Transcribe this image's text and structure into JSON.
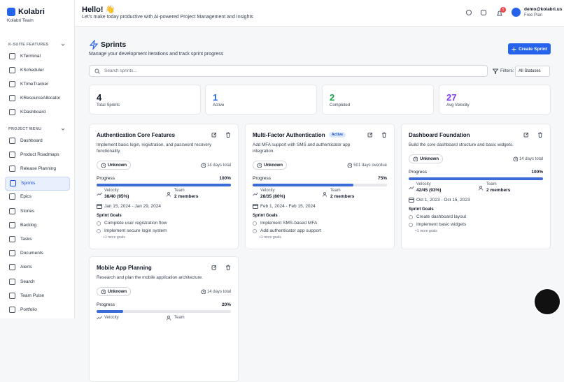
{
  "sidebar": {
    "brand": "Kolabri",
    "team": "Kolabri Team",
    "sections": [
      {
        "title": "K-SUITE FEATURES",
        "items": [
          "KTerminal",
          "KScheduler",
          "KTimeTracker",
          "KResourceAllocator",
          "KDashboard"
        ]
      },
      {
        "title": "PROJECT MENU",
        "items": [
          "Dashboard",
          "Product Roadmaps",
          "Release Planning",
          "Sprints",
          "Epics",
          "Stories",
          "Backlog",
          "Tasks",
          "Documents",
          "Alerts",
          "Search",
          "Team Pulse",
          "Portfolio"
        ]
      }
    ],
    "active_item": "Sprints"
  },
  "header": {
    "greeting": "Hello! 👋",
    "subtitle": "Let's make today productive with AI-powered Project Management and Insights",
    "notifications": "5",
    "user_email": "demo@kolabri.us",
    "plan": "Free Plan"
  },
  "page": {
    "title": "Sprints",
    "subtitle": "Manage your development iterations and track sprint progress",
    "create_button": "Create Sprint",
    "search_placeholder": "Search sprints...",
    "filter_label": "Filters:",
    "filter_value": "All Statuses"
  },
  "stats": [
    {
      "value": 4,
      "label": "Total Sprints",
      "color": "#111827"
    },
    {
      "value": 1,
      "label": "Active",
      "color": "#2563eb"
    },
    {
      "value": 2,
      "label": "Completed",
      "color": "#16a34a"
    },
    {
      "value": 27,
      "label": "Avg Velocity",
      "color": "#7c3aed"
    }
  ],
  "labels": {
    "progress": "Progress",
    "velocity": "Velocity",
    "team": "Team",
    "goals": "Sprint Goals"
  },
  "sprints": [
    {
      "name": "Authentication Core Features",
      "description": "Implement basic login, registration, and password recovery functionality.",
      "status": "Unknown",
      "timing": "14 days total",
      "progress": {
        "value": 100,
        "label": "100%"
      },
      "velocity": "38/40 (95%)",
      "team": "2 members",
      "dates": "Jan 15, 2024 - Jan 29, 2024",
      "goals": [
        "Complete user registration flow",
        "Implement secure login system"
      ],
      "more": "+1 more goals"
    },
    {
      "name": "Multi-Factor Authentication",
      "badge": "Active",
      "description": "Add MFA support with SMS and authenticator app integration.",
      "status": "Unknown",
      "timing": "501 days overdue",
      "progress": {
        "value": 75,
        "label": "75%"
      },
      "velocity": "28/35 (80%)",
      "team": "2 members",
      "dates": "Feb 1, 2024 - Feb 15, 2024",
      "goals": [
        "Implement SMS-based MFA",
        "Add authenticator app support"
      ],
      "more": "+1 more goals"
    },
    {
      "name": "Dashboard Foundation",
      "description": "Build the core dashboard structure and basic widgets.",
      "status": "Unknown",
      "timing": "14 days total",
      "progress": {
        "value": 100,
        "label": "100%"
      },
      "velocity": "42/45 (93%)",
      "team": "2 members",
      "dates": "Oct 1, 2023 - Oct 15, 2023",
      "goals": [
        "Create dashboard layout",
        "Implement basic widgets"
      ],
      "more": "+1 more goals"
    },
    {
      "name": "Mobile App Planning",
      "description": "Research and plan the mobile application architecture.",
      "status": "Unknown",
      "timing": "14 days total",
      "progress": {
        "value": 20,
        "label": "20%"
      }
    }
  ]
}
